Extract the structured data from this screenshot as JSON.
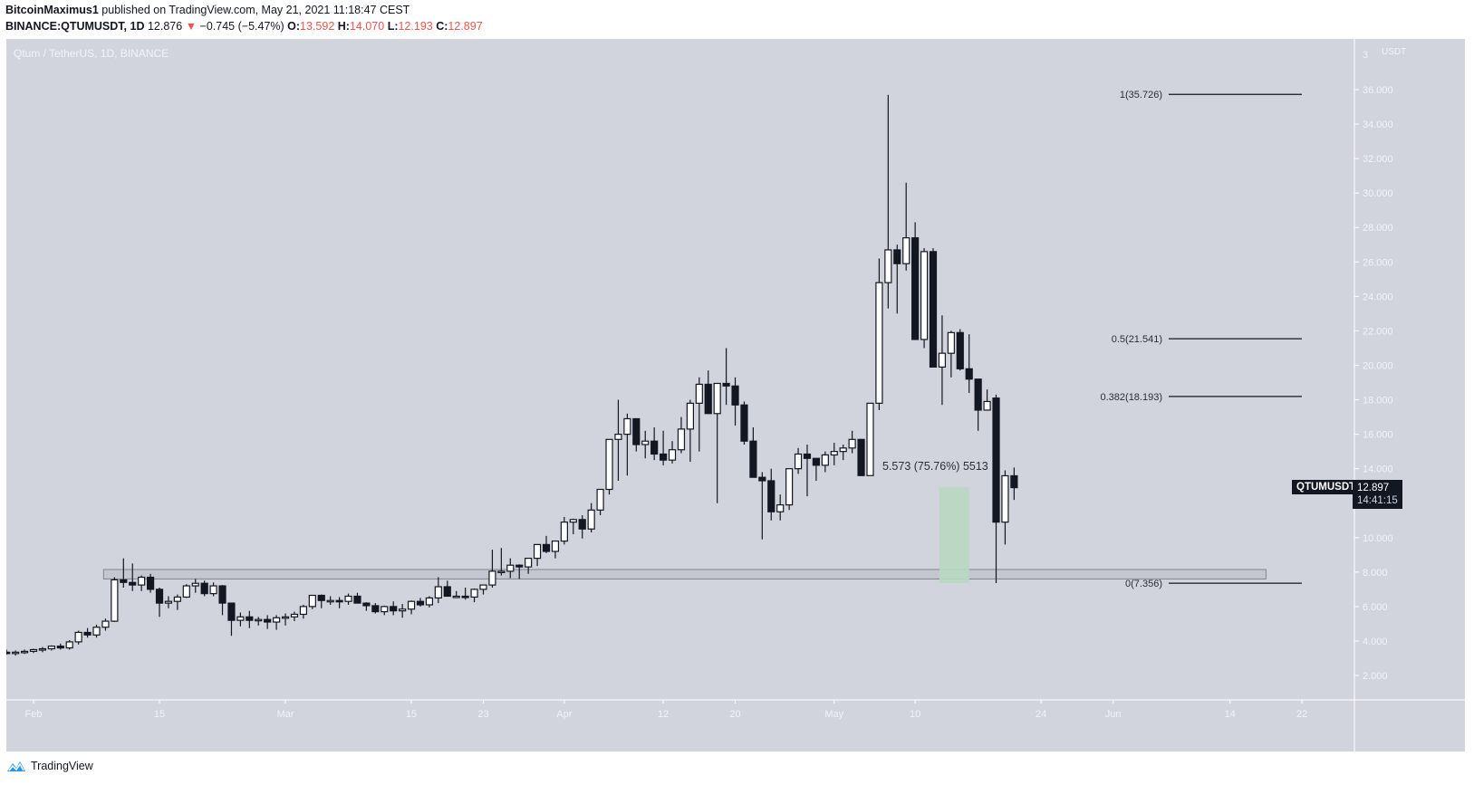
{
  "header": {
    "publisher": "BitcoinMaximus1",
    "published_text": " published on TradingView.com, May 21, 2021 11:18:47 CEST",
    "symbol_line": "BINANCE:QTUMUSDT, 1D",
    "last": "12.876",
    "change": "−0.745 (−5.47%)",
    "o_label": "O:",
    "o": "13.592",
    "h_label": "H:",
    "h": "14.070",
    "l_label": "L:",
    "l": "12.193",
    "c_label": "C:",
    "c": "12.897",
    "down_arrow": "▼"
  },
  "pane": {
    "title": "Qtum / TetherUS, 1D, BINANCE"
  },
  "price_tag": {
    "symbol": "QTUMUSDT",
    "price": "12.897",
    "countdown": "14:41:15"
  },
  "footer": {
    "brand": "TradingView"
  },
  "colors": {
    "background": "#d1d4dc",
    "candle_up": "#ffffff",
    "candle_down": "#131722",
    "axis_text": "#f0f3fa",
    "zone_fill": "#c4c7d0",
    "zone_border": "#808590",
    "measure_fill": "#b9d8c2"
  },
  "chart_data": {
    "type": "candlestick",
    "title": "Qtum / TetherUS, 1D, BINANCE",
    "ylabel": "USDT",
    "ylim": [
      1.0,
      37.0
    ],
    "y_ticks": [
      "36.000",
      "34.000",
      "32.000",
      "30.000",
      "28.000",
      "26.000",
      "24.000",
      "22.000",
      "20.000",
      "18.000",
      "16.000",
      "14.000",
      "12.000",
      "10.000",
      "8.000",
      "6.000",
      "4.000",
      "2.000"
    ],
    "y_axis_top_label": "3",
    "x_ticks": [
      {
        "label": "Feb",
        "day": 0
      },
      {
        "label": "15",
        "day": 14
      },
      {
        "label": "Mar",
        "day": 28
      },
      {
        "label": "15",
        "day": 42
      },
      {
        "label": "23",
        "day": 50
      },
      {
        "label": "Apr",
        "day": 59
      },
      {
        "label": "12",
        "day": 70
      },
      {
        "label": "20",
        "day": 78
      },
      {
        "label": "May",
        "day": 89
      },
      {
        "label": "10",
        "day": 98
      },
      {
        "label": "24",
        "day": 112
      },
      {
        "label": "Jun",
        "day": 120
      },
      {
        "label": "14",
        "day": 133
      },
      {
        "label": "22",
        "day": 141
      }
    ],
    "candles_note": "day index from Feb 1, 2021; [day, open, high, low, close] approx",
    "candles": [
      [
        -3,
        3.35,
        3.5,
        3.2,
        3.3
      ],
      [
        -2,
        3.3,
        3.45,
        3.15,
        3.35
      ],
      [
        -1,
        3.35,
        3.5,
        3.25,
        3.4
      ],
      [
        0,
        3.4,
        3.55,
        3.3,
        3.5
      ],
      [
        1,
        3.5,
        3.65,
        3.35,
        3.55
      ],
      [
        2,
        3.55,
        3.75,
        3.45,
        3.7
      ],
      [
        3,
        3.7,
        3.85,
        3.5,
        3.6
      ],
      [
        4,
        3.6,
        4.05,
        3.5,
        3.95
      ],
      [
        5,
        3.95,
        4.6,
        3.8,
        4.5
      ],
      [
        6,
        4.5,
        4.75,
        4.2,
        4.35
      ],
      [
        7,
        4.35,
        4.95,
        4.2,
        4.8
      ],
      [
        8,
        4.8,
        5.3,
        4.6,
        5.15
      ],
      [
        9,
        5.15,
        7.7,
        5.1,
        7.55
      ],
      [
        10,
        7.55,
        8.8,
        7.1,
        7.4
      ],
      [
        11,
        7.4,
        8.5,
        6.9,
        7.25
      ],
      [
        12,
        7.25,
        7.8,
        6.9,
        7.7
      ],
      [
        13,
        7.7,
        7.9,
        6.8,
        7.0
      ],
      [
        14,
        7.0,
        7.1,
        5.4,
        6.2
      ],
      [
        15,
        6.2,
        6.6,
        5.9,
        6.3
      ],
      [
        16,
        6.3,
        6.7,
        5.8,
        6.55
      ],
      [
        17,
        6.55,
        7.3,
        6.5,
        7.2
      ],
      [
        18,
        7.2,
        7.6,
        6.8,
        7.35
      ],
      [
        19,
        7.35,
        7.5,
        6.6,
        6.75
      ],
      [
        20,
        6.75,
        7.4,
        6.6,
        7.2
      ],
      [
        21,
        7.2,
        7.25,
        5.5,
        6.2
      ],
      [
        22,
        6.2,
        6.0,
        4.3,
        5.2
      ],
      [
        23,
        5.2,
        5.65,
        4.85,
        5.4
      ],
      [
        24,
        5.4,
        5.75,
        4.75,
        5.2
      ],
      [
        25,
        5.2,
        5.4,
        4.9,
        5.25
      ],
      [
        26,
        5.25,
        5.5,
        4.7,
        5.1
      ],
      [
        27,
        5.1,
        5.5,
        4.65,
        5.35
      ],
      [
        28,
        5.35,
        5.6,
        4.9,
        5.4
      ],
      [
        29,
        5.4,
        5.7,
        5.15,
        5.55
      ],
      [
        30,
        5.55,
        6.1,
        5.3,
        6.0
      ],
      [
        31,
        6.0,
        6.6,
        5.85,
        6.65
      ],
      [
        32,
        6.65,
        6.7,
        5.9,
        6.35
      ],
      [
        33,
        6.35,
        6.6,
        6.1,
        6.35
      ],
      [
        34,
        6.35,
        6.55,
        5.9,
        6.3
      ],
      [
        35,
        6.3,
        6.75,
        6.1,
        6.6
      ],
      [
        36,
        6.6,
        6.8,
        6.2,
        6.2
      ],
      [
        37,
        6.2,
        6.25,
        5.75,
        6.05
      ],
      [
        38,
        6.05,
        6.2,
        5.6,
        5.7
      ],
      [
        39,
        5.7,
        6.05,
        5.5,
        6.0
      ],
      [
        40,
        6.0,
        6.3,
        5.5,
        5.75
      ],
      [
        41,
        5.75,
        6.15,
        5.35,
        5.85
      ],
      [
        42,
        5.85,
        6.35,
        5.55,
        6.3
      ],
      [
        43,
        6.3,
        6.5,
        6.0,
        6.1
      ],
      [
        44,
        6.1,
        6.6,
        5.95,
        6.5
      ],
      [
        45,
        6.5,
        7.7,
        6.2,
        7.15
      ],
      [
        46,
        7.15,
        7.5,
        6.6,
        6.6
      ],
      [
        47,
        6.6,
        6.9,
        6.5,
        6.6
      ],
      [
        48,
        6.6,
        7.1,
        6.4,
        6.55
      ],
      [
        49,
        6.55,
        7.05,
        6.25,
        7.0
      ],
      [
        50,
        7.0,
        7.25,
        6.7,
        7.25
      ],
      [
        51,
        7.25,
        9.3,
        7.1,
        8.05
      ],
      [
        52,
        8.05,
        9.4,
        7.8,
        8.05
      ],
      [
        53,
        8.05,
        8.8,
        7.65,
        8.4
      ],
      [
        54,
        8.4,
        8.45,
        7.6,
        8.3
      ],
      [
        55,
        8.3,
        8.7,
        7.9,
        8.8
      ],
      [
        56,
        8.8,
        9.3,
        8.35,
        9.6
      ],
      [
        57,
        9.6,
        10.1,
        9.1,
        9.2
      ],
      [
        58,
        9.2,
        9.6,
        8.8,
        9.8
      ],
      [
        59,
        9.8,
        11.2,
        9.6,
        10.9
      ],
      [
        60,
        10.9,
        11.1,
        10.2,
        11.05
      ],
      [
        61,
        11.05,
        11.3,
        9.95,
        10.5
      ],
      [
        62,
        10.5,
        12.0,
        10.3,
        11.6
      ],
      [
        63,
        11.6,
        12.6,
        11.3,
        12.8
      ],
      [
        64,
        12.8,
        14.4,
        12.5,
        15.7
      ],
      [
        65,
        15.7,
        18.0,
        13.3,
        16.0
      ],
      [
        66,
        16.0,
        17.2,
        13.6,
        16.9
      ],
      [
        67,
        16.9,
        16.9,
        15.0,
        15.4
      ],
      [
        68,
        15.4,
        16.2,
        14.6,
        15.6
      ],
      [
        69,
        15.6,
        16.4,
        14.5,
        14.85
      ],
      [
        70,
        14.85,
        16.2,
        14.2,
        14.5
      ],
      [
        71,
        14.5,
        15.6,
        14.3,
        15.1
      ],
      [
        72,
        15.1,
        17.0,
        14.9,
        16.3
      ],
      [
        73,
        16.3,
        18.0,
        14.4,
        17.8
      ],
      [
        74,
        17.8,
        19.3,
        15.0,
        18.9
      ],
      [
        75,
        18.9,
        19.7,
        17.8,
        17.2
      ],
      [
        76,
        17.2,
        18.9,
        12.0,
        18.95
      ],
      [
        77,
        18.95,
        21.0,
        17.7,
        18.8
      ],
      [
        78,
        18.8,
        19.3,
        16.5,
        17.7
      ],
      [
        79,
        17.7,
        17.9,
        15.4,
        15.6
      ],
      [
        80,
        15.6,
        16.4,
        13.5,
        13.5
      ],
      [
        81,
        13.5,
        13.8,
        9.9,
        13.3
      ],
      [
        82,
        13.3,
        14.0,
        11.0,
        11.5
      ],
      [
        83,
        11.5,
        12.5,
        11.0,
        11.9
      ],
      [
        84,
        11.9,
        13.9,
        11.6,
        14.0
      ],
      [
        85,
        14.0,
        15.2,
        13.7,
        14.85
      ],
      [
        86,
        14.85,
        15.4,
        12.4,
        14.6
      ],
      [
        87,
        14.6,
        14.3,
        13.3,
        14.2
      ],
      [
        88,
        14.2,
        15.0,
        13.8,
        14.8
      ],
      [
        89,
        14.8,
        15.5,
        14.2,
        15.0
      ],
      [
        90,
        15.0,
        15.4,
        14.5,
        15.2
      ],
      [
        91,
        15.2,
        16.2,
        14.9,
        15.7
      ],
      [
        92,
        15.7,
        15.7,
        13.6,
        13.6
      ],
      [
        93,
        13.6,
        17.8,
        13.6,
        17.8
      ],
      [
        94,
        17.8,
        26.2,
        17.4,
        24.8
      ],
      [
        95,
        24.8,
        35.7,
        23.3,
        26.7
      ],
      [
        96,
        26.7,
        27.0,
        23.0,
        25.9
      ],
      [
        97,
        25.9,
        30.6,
        25.5,
        27.4
      ],
      [
        98,
        27.4,
        28.3,
        21.5,
        21.5
      ],
      [
        99,
        21.5,
        26.8,
        21.0,
        26.6
      ],
      [
        100,
        26.6,
        26.8,
        19.9,
        19.9
      ],
      [
        101,
        19.9,
        22.9,
        17.7,
        20.7
      ],
      [
        102,
        20.7,
        22.0,
        19.3,
        21.9
      ],
      [
        103,
        21.9,
        22.1,
        19.7,
        19.8
      ],
      [
        104,
        19.8,
        21.8,
        18.4,
        19.2
      ],
      [
        105,
        19.2,
        18.6,
        16.2,
        17.4
      ],
      [
        106,
        17.4,
        18.6,
        17.5,
        17.9
      ],
      [
        107,
        18.1,
        18.3,
        7.36,
        10.9
      ],
      [
        108,
        10.9,
        13.9,
        9.6,
        13.59
      ],
      [
        109,
        13.59,
        14.07,
        12.19,
        12.9
      ]
    ],
    "annotations": {
      "support_zone": {
        "from_day": 9,
        "to_day": 137,
        "low": 7.6,
        "high": 8.15
      },
      "fibonacci": [
        {
          "level": "1",
          "price": 35.726,
          "label": "1(35.726)"
        },
        {
          "level": "0.5",
          "price": 21.541,
          "label": "0.5(21.541)"
        },
        {
          "level": "0.382",
          "price": 18.193,
          "label": "0.382(18.193)"
        },
        {
          "level": "0",
          "price": 7.356,
          "label": "0(7.356)"
        }
      ],
      "measure": {
        "label": "5.573 (75.76%) 5513",
        "from_day": 101,
        "to_day": 104,
        "low": 7.36,
        "high": 12.93
      }
    }
  }
}
